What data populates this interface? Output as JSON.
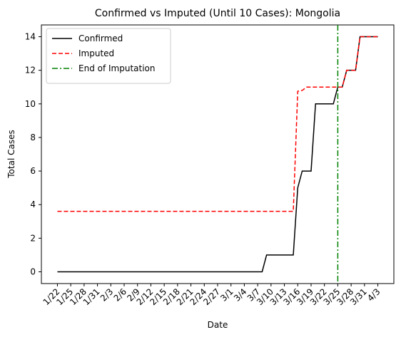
{
  "chart_data": {
    "type": "line",
    "title": "Confirmed vs Imputed (Until 10 Cases): Mongolia",
    "x_label": "Date",
    "y_label": "Total Cases",
    "categories": [
      "1/22",
      null,
      null,
      "1/25",
      null,
      null,
      "1/28",
      null,
      null,
      "1/31",
      null,
      null,
      "2/3",
      null,
      null,
      "2/6",
      null,
      null,
      "2/9",
      null,
      null,
      "2/12",
      null,
      null,
      "2/15",
      null,
      null,
      "2/18",
      null,
      null,
      "2/21",
      null,
      null,
      "2/24",
      null,
      null,
      "2/27",
      null,
      null,
      "3/1",
      null,
      null,
      "3/4",
      null,
      null,
      "3/7",
      null,
      null,
      "3/10",
      null,
      null,
      "3/13",
      null,
      null,
      "3/16",
      null,
      null,
      "3/19",
      null,
      null,
      "3/22",
      null,
      null,
      "3/25",
      null,
      null,
      "3/28",
      null,
      null,
      "3/31",
      null,
      null,
      "4/3"
    ],
    "series": [
      {
        "name": "Confirmed",
        "color": "#000000",
        "dash": "solid",
        "values": [
          0,
          0,
          0,
          0,
          0,
          0,
          0,
          0,
          0,
          0,
          0,
          0,
          0,
          0,
          0,
          0,
          0,
          0,
          0,
          0,
          0,
          0,
          0,
          0,
          0,
          0,
          0,
          0,
          0,
          0,
          0,
          0,
          0,
          0,
          0,
          0,
          0,
          0,
          0,
          0,
          0,
          0,
          0,
          0,
          0,
          0,
          0,
          1,
          1,
          1,
          1,
          1,
          1,
          1,
          5,
          6,
          6,
          6,
          10,
          10,
          10,
          10,
          10,
          11,
          11,
          12,
          12,
          12,
          14,
          14,
          14,
          14,
          14
        ]
      },
      {
        "name": "Imputed",
        "color": "#ff0000",
        "dash": "dashed",
        "values": [
          3.6,
          3.6,
          3.6,
          3.6,
          3.6,
          3.6,
          3.6,
          3.6,
          3.6,
          3.6,
          3.6,
          3.6,
          3.6,
          3.6,
          3.6,
          3.6,
          3.6,
          3.6,
          3.6,
          3.6,
          3.6,
          3.6,
          3.6,
          3.6,
          3.6,
          3.6,
          3.6,
          3.6,
          3.6,
          3.6,
          3.6,
          3.6,
          3.6,
          3.6,
          3.6,
          3.6,
          3.6,
          3.6,
          3.6,
          3.6,
          3.6,
          3.6,
          3.6,
          3.6,
          3.6,
          3.6,
          3.6,
          3.6,
          3.6,
          3.6,
          3.6,
          3.6,
          3.6,
          3.6,
          10.75,
          10.8,
          11,
          11,
          11,
          11,
          11,
          11,
          11,
          11,
          11,
          12,
          12,
          12,
          14,
          14,
          14,
          14,
          14
        ]
      }
    ],
    "vline": {
      "name": "End of Imputation",
      "color": "#008000",
      "at": "3/25"
    },
    "ylim": [
      -0.7,
      14.7
    ],
    "yticks": [
      0,
      2,
      4,
      6,
      8,
      10,
      12,
      14
    ],
    "legend": "upper left"
  }
}
